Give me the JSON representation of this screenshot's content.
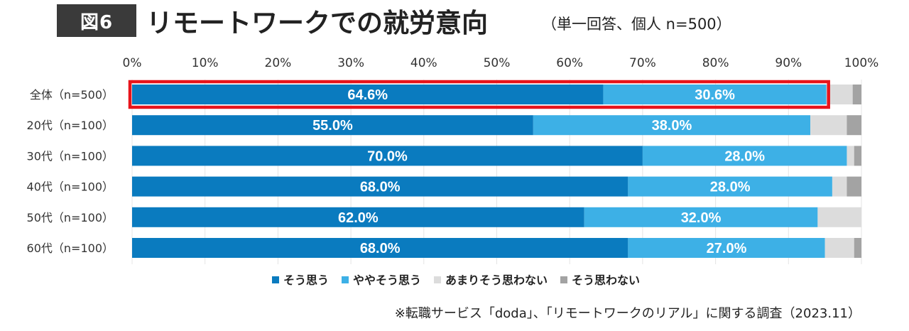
{
  "header": {
    "figure_label": "図6",
    "title": "リモートワークでの就労意向",
    "subtitle": "（単一回答、個人 n=500）"
  },
  "source": "※転職サービス「doda」、「リモートワークのリアル」に関する調査（2023.11）",
  "colors": {
    "highlight_frame": "#e8141b"
  },
  "chart_data": {
    "type": "bar",
    "orientation": "horizontal",
    "stacked": true,
    "percent_stacked": true,
    "categories": [
      "全体（n=500）",
      "20代（n=100）",
      "30代（n=100）",
      "40代（n=100）",
      "50代（n=100）",
      "60代（n=100）"
    ],
    "x_ticks": [
      "0%",
      "10%",
      "20%",
      "30%",
      "40%",
      "50%",
      "60%",
      "70%",
      "80%",
      "90%",
      "100%"
    ],
    "xlim": [
      0,
      100
    ],
    "grid": true,
    "legend_position": "bottom",
    "highlighted_category": "全体（n=500）",
    "series": [
      {
        "name": "そう思う",
        "color": "#0a7bbf",
        "values": [
          64.6,
          55.0,
          70.0,
          68.0,
          62.0,
          68.0
        ],
        "labels": [
          "64.6%",
          "55.0%",
          "70.0%",
          "68.0%",
          "62.0%",
          "68.0%"
        ]
      },
      {
        "name": "ややそう思う",
        "color": "#3db0e6",
        "values": [
          30.6,
          38.0,
          28.0,
          28.0,
          32.0,
          27.0
        ],
        "labels": [
          "30.6%",
          "38.0%",
          "28.0%",
          "28.0%",
          "32.0%",
          "27.0%"
        ]
      },
      {
        "name": "あまりそう思わない",
        "color": "#dcdcdc",
        "values": [
          3.6,
          5.0,
          1.0,
          2.0,
          6.0,
          4.0
        ]
      },
      {
        "name": "そう思わない",
        "color": "#a3a3a3",
        "values": [
          1.2,
          2.0,
          1.0,
          2.0,
          0.0,
          1.0
        ]
      }
    ]
  }
}
